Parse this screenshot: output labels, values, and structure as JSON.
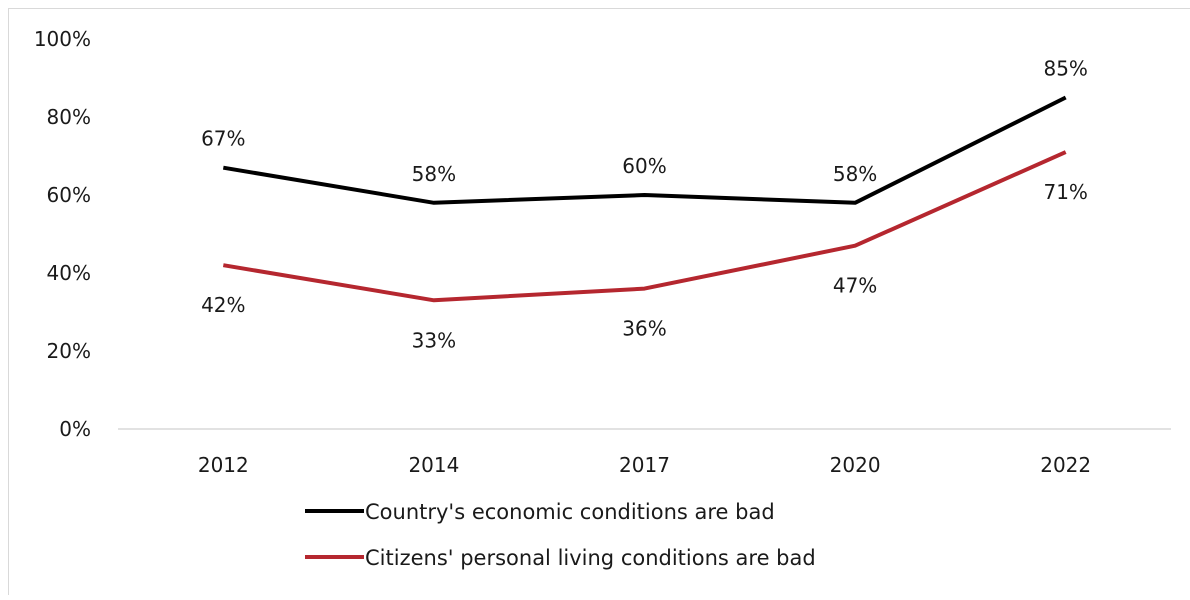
{
  "chart_data": {
    "type": "line",
    "title": "",
    "xlabel": "",
    "ylabel": "",
    "categories": [
      "2012",
      "2014",
      "2017",
      "2020",
      "2022"
    ],
    "ylim": [
      0,
      100
    ],
    "yticks": [
      0,
      20,
      40,
      60,
      80,
      100
    ],
    "ytick_labels": [
      "0%",
      "20%",
      "40%",
      "60%",
      "80%",
      "100%"
    ],
    "grid": false,
    "legend_position": "bottom",
    "series": [
      {
        "name": "Country's economic conditions are bad",
        "values": [
          67,
          58,
          60,
          58,
          85
        ],
        "labels": [
          "67%",
          "58%",
          "60%",
          "58%",
          "85%"
        ],
        "color": "#000000"
      },
      {
        "name": "Citizens' personal living conditions are bad",
        "values": [
          42,
          33,
          36,
          47,
          71
        ],
        "labels": [
          "42%",
          "33%",
          "36%",
          "47%",
          "71%"
        ],
        "color": "#b5272f"
      }
    ]
  }
}
